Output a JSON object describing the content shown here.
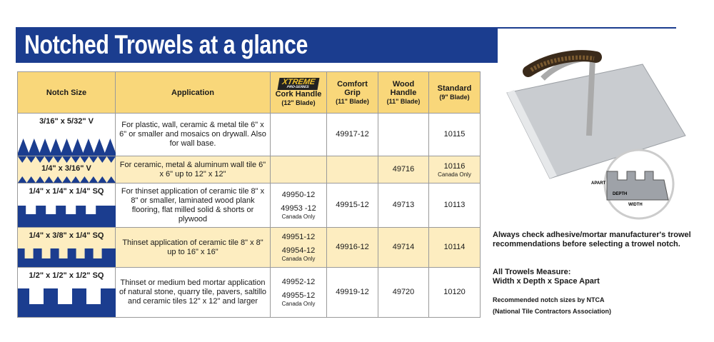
{
  "header": {
    "title": "Notched Trowels at a glance"
  },
  "table": {
    "columns": [
      {
        "label": "Notch Size"
      },
      {
        "label": "Application"
      },
      {
        "logo": "XTREME",
        "logo_sub": "PRO-SERIES",
        "label": "Cork Handle",
        "blade": "(12\" Blade)"
      },
      {
        "label": "Comfort Grip",
        "blade": "(11\" Blade)"
      },
      {
        "label": "Wood Handle",
        "blade": "(11\" Blade)"
      },
      {
        "label": "Standard",
        "blade": "(9\" Blade)"
      }
    ],
    "rows": [
      {
        "notch": "3/16\" x 5/32\" V",
        "application": "For plastic, wall, ceramic & metal tile 6\" x 6\" or smaller and mosaics on drywall. Also for wall base.",
        "cells": [
          null,
          [
            {
              "part": "49917-12"
            }
          ],
          null,
          [
            {
              "part": "10115"
            }
          ]
        ]
      },
      {
        "notch": "1/4\" x 3/16\" V",
        "application": "For ceramic, metal & aluminum wall tile 6\" x 6\" up to 12\" x 12\"",
        "cells": [
          null,
          null,
          [
            {
              "part": "49716"
            }
          ],
          [
            {
              "part": "10116",
              "note": "Canada Only"
            }
          ]
        ]
      },
      {
        "notch": "1/4\" x 1/4\" x 1/4\" SQ",
        "application": "For thinset application of ceramic tile 8\" x 8\" or smaller, laminated wood plank flooring, flat milled solid & shorts or plywood",
        "cells": [
          [
            {
              "part": "49950-12"
            },
            {
              "part": "49953 -12",
              "note": "Canada Only"
            }
          ],
          [
            {
              "part": "49915-12"
            }
          ],
          [
            {
              "part": "49713"
            }
          ],
          [
            {
              "part": "10113"
            }
          ]
        ]
      },
      {
        "notch": "1/4\" x 3/8\" x 1/4\" SQ",
        "application": "Thinset application of ceramic tile 8\" x 8\" up to 16\" x 16\"",
        "cells": [
          [
            {
              "part": "49951-12"
            },
            {
              "part": "49954-12",
              "note": "Canada Only"
            }
          ],
          [
            {
              "part": "49916-12"
            }
          ],
          [
            {
              "part": "49714"
            }
          ],
          [
            {
              "part": "10114"
            }
          ]
        ]
      },
      {
        "notch": "1/2\" x 1/2\" x 1/2\" SQ",
        "application": "Thinset or medium bed mortar application of natural stone, quarry tile, pavers, saltillo and ceramic tiles 12\" x 12\" and larger",
        "cells": [
          [
            {
              "part": "49952-12"
            },
            {
              "part": "49955-12",
              "note": "Canada Only"
            }
          ],
          [
            {
              "part": "49919-12"
            }
          ],
          [
            {
              "part": "49720"
            }
          ],
          [
            {
              "part": "10120"
            }
          ]
        ]
      }
    ]
  },
  "diagram": {
    "labels": [
      "APART",
      "DEPTH",
      "WIDTH"
    ]
  },
  "sidebar": {
    "advice": "Always check adhesive/mortar manufacturer's trowel recommendations before selecting a trowel notch.",
    "measure_title": "All Trowels Measure:",
    "measure": "Width x Depth x Space Apart",
    "ntca": "Recommended notch sizes by NTCA",
    "ntca_full": "(National Tile Contractors Association)"
  }
}
